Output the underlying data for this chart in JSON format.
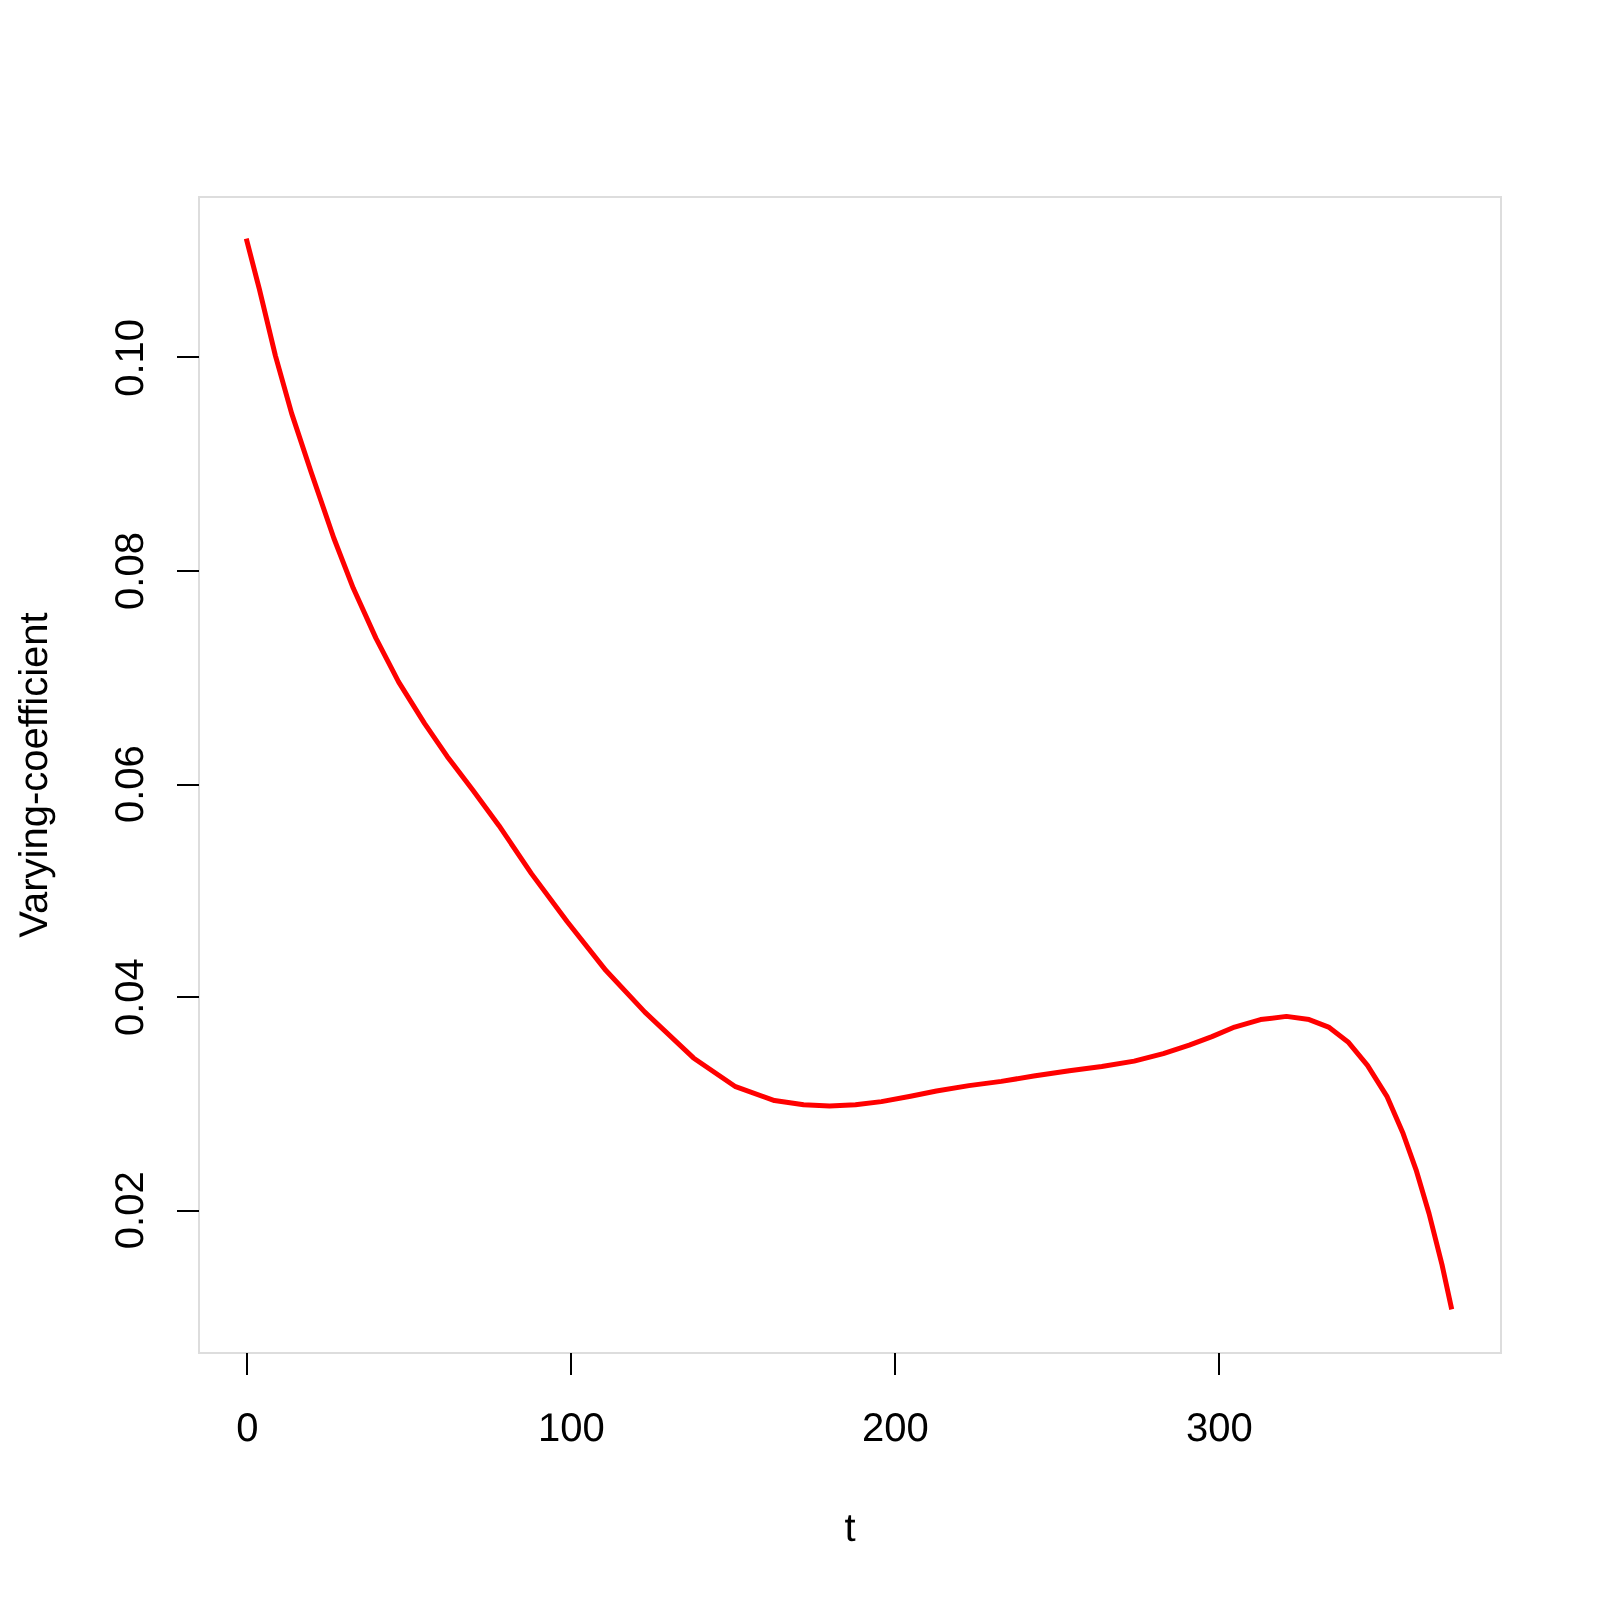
{
  "chart_data": {
    "type": "line",
    "xlabel": "t",
    "ylabel": "Varying-coefficient",
    "x": [
      0,
      4,
      9,
      14,
      20,
      27,
      33,
      40,
      47,
      55,
      62,
      70,
      78,
      88,
      99,
      111,
      123,
      138,
      151,
      163,
      172,
      180,
      188,
      196,
      205,
      213,
      223,
      233,
      243,
      254,
      264,
      274,
      283,
      291,
      298,
      305,
      313,
      321,
      328,
      334,
      340,
      346,
      352,
      357,
      361,
      365,
      369,
      372
    ],
    "values": [
      0.1111,
      0.1064,
      0.1001,
      0.0947,
      0.0892,
      0.083,
      0.0783,
      0.0736,
      0.0695,
      0.0656,
      0.0625,
      0.0593,
      0.056,
      0.0515,
      0.047,
      0.0424,
      0.0385,
      0.0342,
      0.0315,
      0.0302,
      0.0298,
      0.0297,
      0.0298,
      0.0301,
      0.0306,
      0.0311,
      0.0316,
      0.032,
      0.0325,
      0.033,
      0.0334,
      0.0339,
      0.0346,
      0.0354,
      0.0362,
      0.0371,
      0.0378,
      0.0381,
      0.0378,
      0.0371,
      0.0357,
      0.0335,
      0.0306,
      0.0271,
      0.0237,
      0.0196,
      0.0148,
      0.0106
    ],
    "color": "#ff0000",
    "xlim": [
      -14.9,
      386.9
    ],
    "ylim": [
      0.0066,
      0.1151
    ],
    "xticks": [
      0,
      100,
      200,
      300
    ],
    "yticks": [
      0.02,
      0.04,
      0.06,
      0.08,
      {
        "value": 0.1,
        "label": "0.10"
      }
    ],
    "line_style": "solid"
  }
}
